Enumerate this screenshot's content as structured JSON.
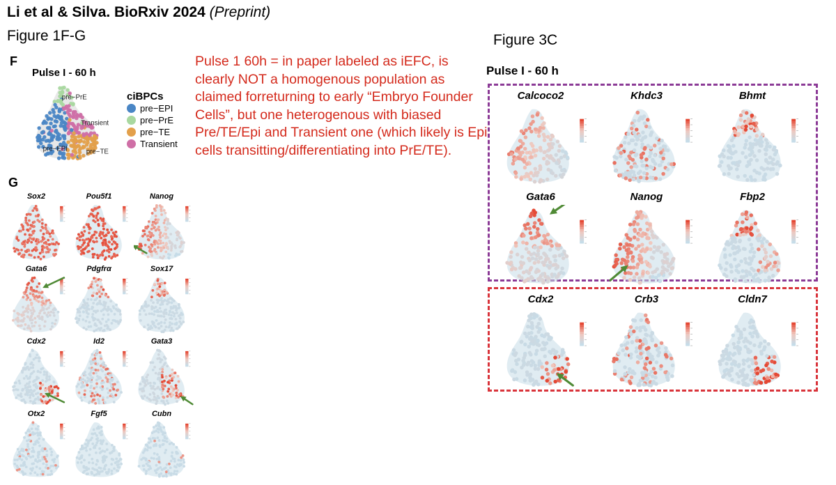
{
  "header": {
    "citation": "Li et al & Silva. BioRxiv 2024",
    "status": "(Preprint)"
  },
  "figure1": {
    "label": "Figure 1F-G",
    "panel_f": "F",
    "panel_g": "G",
    "title": "Pulse I - 60 h",
    "umap_labels": [
      "pre−PrE",
      "Transient",
      "pre−EPI",
      "pre−TE"
    ],
    "legend": {
      "title": "ciBPCs",
      "items": [
        {
          "label": "pre−EPI",
          "color": "#4a86c5"
        },
        {
          "label": "pre−PrE",
          "color": "#a9d8a0"
        },
        {
          "label": "pre−TE",
          "color": "#e3a04b"
        },
        {
          "label": "Transient",
          "color": "#cf6fa6"
        }
      ]
    },
    "genes": [
      {
        "name": "Sox2",
        "pattern": "all",
        "arrow": false
      },
      {
        "name": "Pou5f1",
        "pattern": "all_strong",
        "arrow": false
      },
      {
        "name": "Nanog",
        "pattern": "epi",
        "arrow": true
      },
      {
        "name": "Gata6",
        "pattern": "pre",
        "arrow": true
      },
      {
        "name": "Pdgfrα",
        "pattern": "top",
        "arrow": false
      },
      {
        "name": "Sox17",
        "pattern": "top",
        "arrow": false
      },
      {
        "name": "Cdx2",
        "pattern": "te",
        "arrow": true
      },
      {
        "name": "Id2",
        "pattern": "scatter",
        "arrow": false
      },
      {
        "name": "Gata3",
        "pattern": "right",
        "arrow": true
      },
      {
        "name": "Otx2",
        "pattern": "sparse",
        "arrow": false
      },
      {
        "name": "Fgf5",
        "pattern": "none",
        "arrow": false
      },
      {
        "name": "Cubn",
        "pattern": "sparse",
        "arrow": false
      }
    ]
  },
  "comment": "Pulse 1 60h = in paper labeled as iEFC, is clearly NOT a homogenous population as claimed forreturning to early “Embryo Founder Cells”, but one heterogenous with biased Pre/TE/Epi and Transient one (which likely is Epi cells transitting/differentiating into PrE/TE).",
  "figure3": {
    "label": "Figure 3C",
    "title": "Pulse I - 60 h",
    "box1_color": "#8b3a96",
    "box2_color": "#d9343b",
    "box1_genes": [
      {
        "name": "Calcoco2",
        "pattern": "all_left",
        "arrow": false
      },
      {
        "name": "Khdc3",
        "pattern": "scatter",
        "arrow": false
      },
      {
        "name": "Bhmt",
        "pattern": "top",
        "arrow": false
      },
      {
        "name": "Gata6",
        "pattern": "pre",
        "arrow": true
      },
      {
        "name": "Nanog",
        "pattern": "epi",
        "arrow": true
      },
      {
        "name": "Fbp2",
        "pattern": "top_right",
        "arrow": false
      }
    ],
    "box2_genes": [
      {
        "name": "Cdx2",
        "pattern": "te",
        "arrow": true
      },
      {
        "name": "Crb3",
        "pattern": "scatter",
        "arrow": false
      },
      {
        "name": "Cldn7",
        "pattern": "te",
        "arrow": false
      }
    ]
  },
  "colors": {
    "high": "#e8503a",
    "low": "#c6dce8",
    "arrow": "#4f8a35",
    "comment": "#d42a1c"
  }
}
